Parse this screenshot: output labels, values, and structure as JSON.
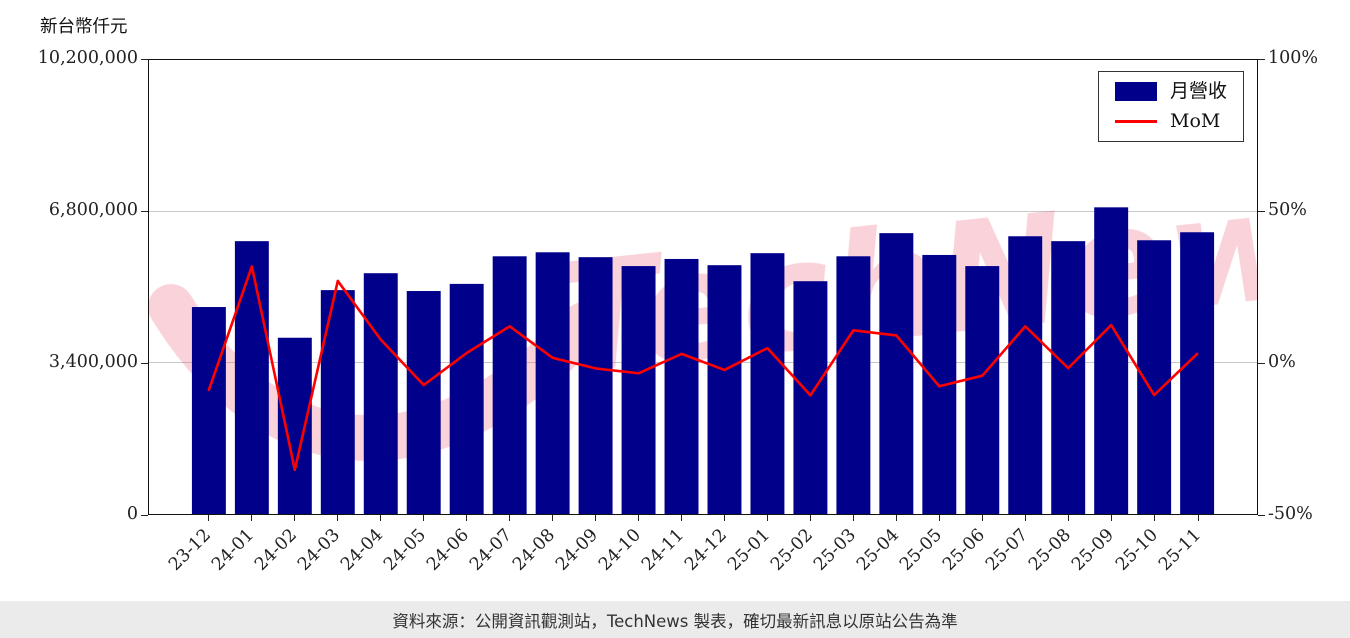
{
  "unit_label": "新台幣仟元",
  "watermark": "TechNews",
  "source_note": "資料來源：公開資訊觀測站，TechNews 製表，確切最新訊息以原站公告為準",
  "legend": {
    "bar_label": "月營收",
    "line_label": "MoM"
  },
  "colors": {
    "bar": "#00008b",
    "line": "#ff0000",
    "grid": "#c9c9c9",
    "watermark": "#e8566e",
    "axis": "#222222",
    "source_bar_bg": "#ebebeb"
  },
  "chart_data": {
    "type": "bar+line",
    "title": "",
    "categories": [
      "23-12",
      "24-01",
      "24-02",
      "24-03",
      "24-04",
      "24-05",
      "24-06",
      "24-07",
      "24-08",
      "24-09",
      "24-10",
      "24-11",
      "24-12",
      "25-01",
      "25-02",
      "25-03",
      "25-04",
      "25-05",
      "25-06",
      "25-07",
      "25-08",
      "25-09",
      "25-10",
      "25-11"
    ],
    "series": [
      {
        "name": "月營收",
        "type": "bar",
        "axis": "left",
        "unit": "新台幣仟元",
        "values": [
          4650000,
          6130000,
          3960000,
          5030000,
          5410000,
          5010000,
          5170000,
          5790000,
          5880000,
          5770000,
          5570000,
          5730000,
          5590000,
          5860000,
          5230000,
          5790000,
          6310000,
          5820000,
          5570000,
          6240000,
          6130000,
          6890000,
          6150000,
          6330000
        ]
      },
      {
        "name": "MoM",
        "type": "line",
        "axis": "right",
        "unit": "%",
        "values": [
          -9.0,
          31.8,
          -35.4,
          27.0,
          7.6,
          -7.4,
          3.2,
          12.0,
          1.6,
          -1.9,
          -3.5,
          2.9,
          -2.4,
          4.8,
          -10.8,
          10.7,
          9.0,
          -7.8,
          -4.3,
          12.0,
          -1.8,
          12.4,
          -10.7,
          2.9
        ]
      }
    ],
    "left_axis": {
      "label": "新台幣仟元",
      "min": 0,
      "max": 10200000,
      "tick_values": [
        0,
        3400000,
        6800000,
        10200000
      ],
      "tick_labels": [
        "0",
        "3,400,000",
        "6,800,000",
        "10,200,000"
      ],
      "grid_values": [
        3400000,
        6800000
      ]
    },
    "right_axis": {
      "min": -50,
      "max": 100,
      "tick_values": [
        -50,
        0,
        50,
        100
      ],
      "tick_labels": [
        "-50%",
        "0%",
        "50%",
        "100%"
      ]
    },
    "legend_position": "top-right",
    "grid": true
  }
}
